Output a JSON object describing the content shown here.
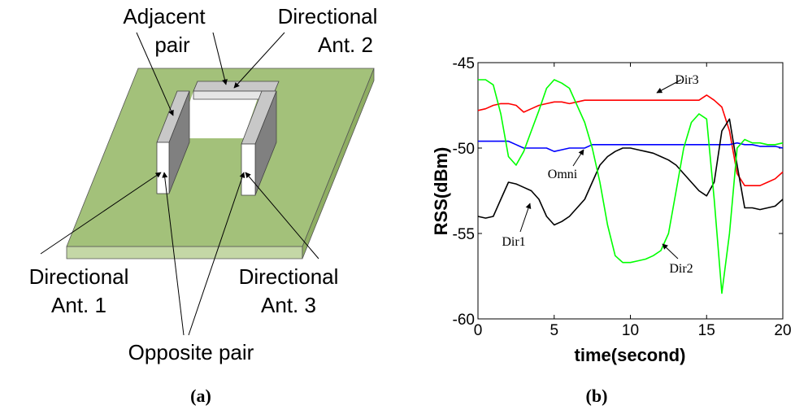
{
  "diagram": {
    "labels": {
      "adjacent_pair": [
        "Adjacent",
        "pair"
      ],
      "ant2": [
        "Directional",
        "Ant. 2"
      ],
      "ant1": [
        "Directional",
        "Ant. 1"
      ],
      "ant3": [
        "Directional",
        "Ant. 3"
      ],
      "opposite_pair": "Opposite pair"
    },
    "caption": "(a)"
  },
  "chart_data": {
    "type": "line",
    "caption": "(b)",
    "x_label": "time(second)",
    "y_label": "RSS(dBm)",
    "x": [
      0,
      0.5,
      1,
      1.5,
      2,
      2.5,
      3,
      3.5,
      4,
      4.5,
      5,
      5.5,
      6,
      6.5,
      7,
      7.5,
      8,
      8.5,
      9,
      9.5,
      10,
      10.5,
      11,
      11.5,
      12,
      12.5,
      13,
      13.5,
      14,
      14.5,
      15,
      15.5,
      16,
      16.5,
      17,
      17.5,
      18,
      18.5,
      19,
      19.5,
      20
    ],
    "series": [
      {
        "name": "Dir3",
        "color": "#ff0000",
        "values": [
          -47.8,
          -47.7,
          -47.5,
          -47.4,
          -47.4,
          -47.5,
          -47.9,
          -47.7,
          -47.5,
          -47.4,
          -47.3,
          -47.3,
          -47.4,
          -47.3,
          -47.2,
          -47.2,
          -47.2,
          -47.2,
          -47.2,
          -47.2,
          -47.2,
          -47.2,
          -47.2,
          -47.2,
          -47.2,
          -47.2,
          -47.2,
          -47.2,
          -47.2,
          -47.2,
          -46.9,
          -47.2,
          -47.6,
          -49,
          -51.5,
          -52.2,
          -52.2,
          -52.2,
          -52,
          -51.8,
          -51.4
        ]
      },
      {
        "name": "Omni",
        "color": "#0000ff",
        "values": [
          -49.6,
          -49.6,
          -49.6,
          -49.6,
          -49.6,
          -49.8,
          -50,
          -50,
          -50,
          -50,
          -50.2,
          -50.1,
          -50,
          -50,
          -50,
          -49.8,
          -49.8,
          -49.8,
          -49.8,
          -49.8,
          -49.8,
          -49.8,
          -49.8,
          -49.8,
          -49.8,
          -49.8,
          -49.8,
          -49.8,
          -49.8,
          -49.8,
          -49.8,
          -49.8,
          -49.8,
          -49.8,
          -49.7,
          -49.8,
          -49.8,
          -49.9,
          -49.9,
          -49.9,
          -50
        ]
      },
      {
        "name": "Dir1",
        "color": "#000000",
        "values": [
          -54,
          -54.1,
          -54,
          -53,
          -52,
          -52.1,
          -52.3,
          -52.5,
          -53,
          -54,
          -54.5,
          -54.3,
          -54,
          -53.5,
          -53,
          -52,
          -51,
          -50.5,
          -50.2,
          -50,
          -50,
          -50.1,
          -50.2,
          -50.3,
          -50.5,
          -50.7,
          -51,
          -51.5,
          -52,
          -52.5,
          -52.8,
          -52,
          -49,
          -48.3,
          -51,
          -53.5,
          -53.5,
          -53.6,
          -53.5,
          -53.4,
          -53
        ]
      },
      {
        "name": "Dir2",
        "color": "#00ff00",
        "values": [
          -46,
          -46,
          -46.3,
          -48,
          -50.5,
          -51,
          -50.2,
          -49,
          -47.8,
          -46.5,
          -46,
          -46.2,
          -46.5,
          -47.5,
          -48.5,
          -50,
          -52,
          -54.5,
          -56.3,
          -56.7,
          -56.7,
          -56.6,
          -56.5,
          -56.3,
          -56,
          -55,
          -52.5,
          -50,
          -48.5,
          -48,
          -48.3,
          -53,
          -58.5,
          -55,
          -50,
          -49.5,
          -49.7,
          -49.7,
          -49.8,
          -49.8,
          -49.7
        ]
      }
    ],
    "xlim": [
      0,
      20
    ],
    "ylim": [
      -60,
      -45
    ],
    "xticks": [
      0,
      5,
      10,
      15,
      20
    ],
    "yticks": [
      -60,
      -55,
      -50,
      -45
    ]
  }
}
